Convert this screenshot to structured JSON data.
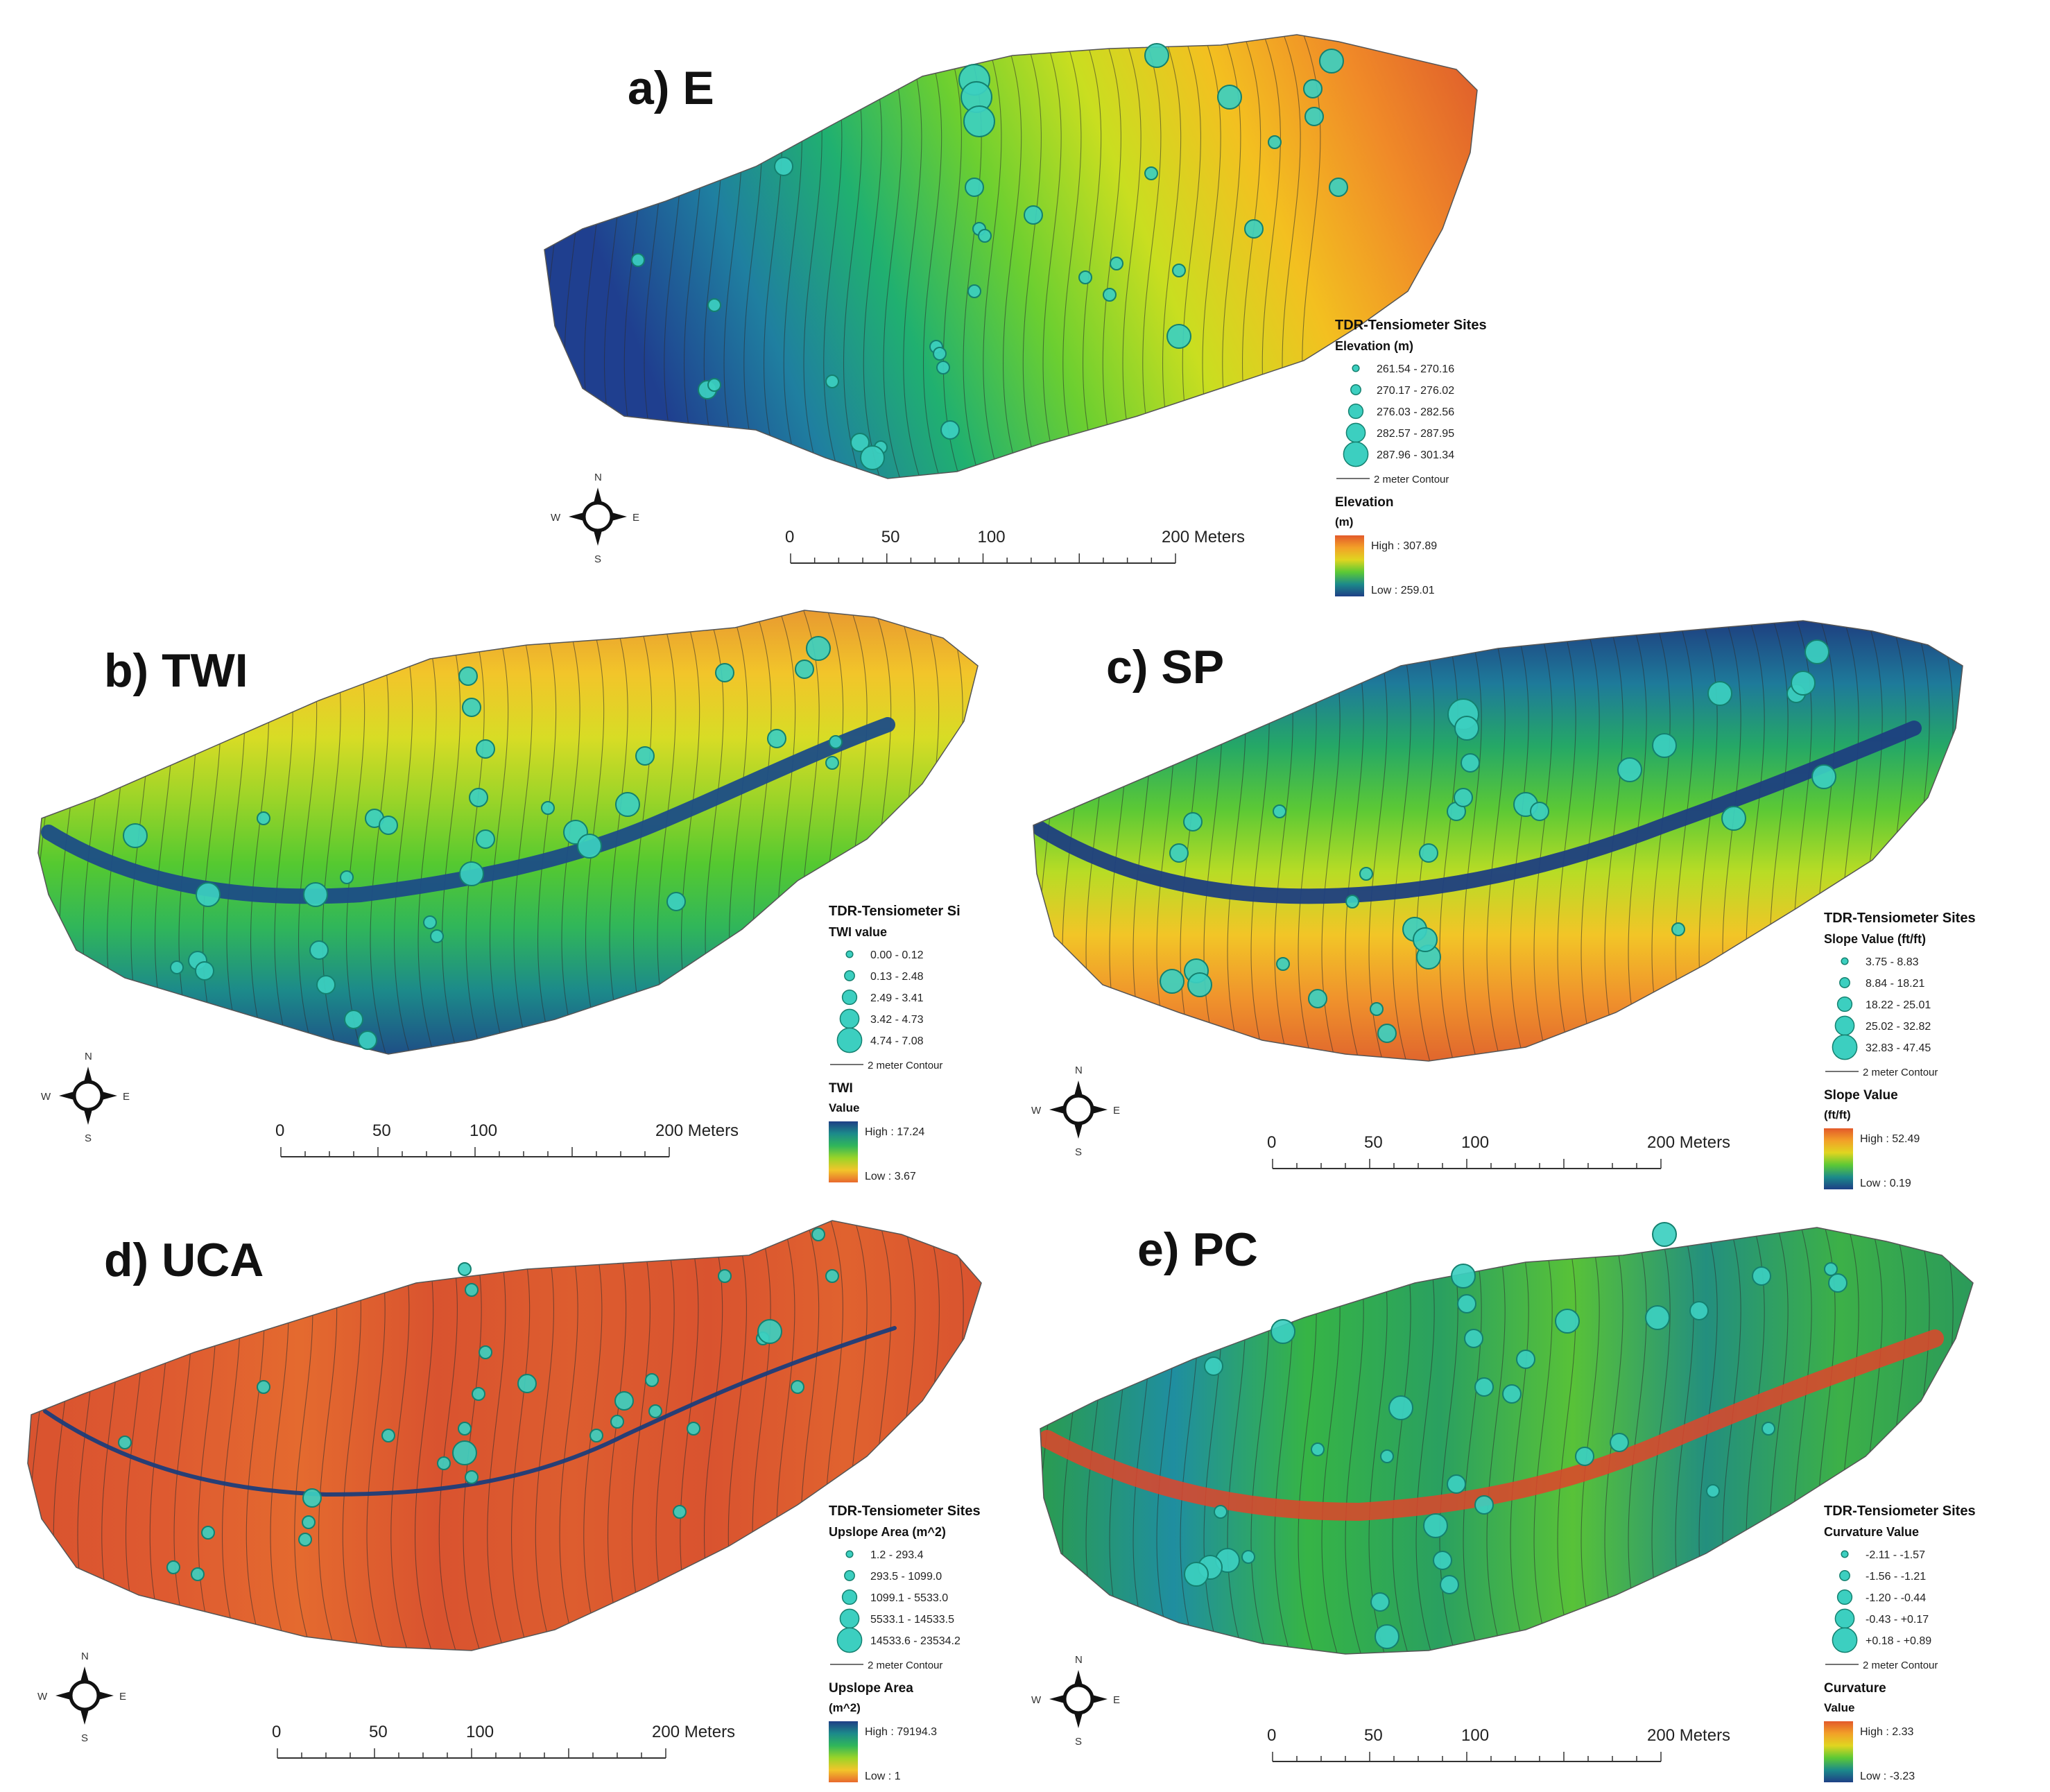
{
  "compass": {
    "n": "N",
    "s": "S",
    "e": "E",
    "w": "W"
  },
  "scale": {
    "labels": [
      "0",
      "50",
      "100",
      "200 Meters"
    ]
  },
  "panels": [
    {
      "id": "a",
      "title": "a) E",
      "legend": {
        "sites_title": "TDR-Tensiometer Sites",
        "sites_var": "Elevation (m)",
        "classes": [
          "261.54 - 270.16",
          "270.17 - 276.02",
          "276.03 - 282.56",
          "282.57 - 287.95",
          "287.96 - 301.34"
        ],
        "contour": "2 meter Contour",
        "raster_title": "Elevation",
        "raster_unit": "(m)",
        "high": "High : 307.89",
        "low": "Low : 259.01"
      },
      "colors": [
        "#1f3f8f",
        "#1f7fa0",
        "#20b070",
        "#6ccf30",
        "#c9de20",
        "#f3c020",
        "#f08a28",
        "#de5a2c"
      ]
    },
    {
      "id": "b",
      "title": "b) TWI",
      "legend": {
        "sites_title": "TDR-Tensiometer Si",
        "sites_var": "TWI value",
        "classes": [
          "0.00 - 0.12",
          "0.13 - 2.48",
          "2.49 - 3.41",
          "3.42 - 4.73",
          "4.74 - 7.08"
        ],
        "contour": "2 meter Contour",
        "raster_title": "TWI",
        "raster_unit": "Value",
        "high": "High : 17.24",
        "low": "Low : 3.67"
      },
      "colors": [
        "#e89a30",
        "#f2c52a",
        "#d8dc25",
        "#9ad428",
        "#55c930",
        "#30b65a",
        "#1c8a8a",
        "#1e4f86"
      ]
    },
    {
      "id": "c",
      "title": "c) SP",
      "legend": {
        "sites_title": "TDR-Tensiometer Sites",
        "sites_var": "Slope Value (ft/ft)",
        "classes": [
          "3.75 - 8.83",
          "8.84 - 18.21",
          "18.22 - 25.01",
          "25.02 - 32.82",
          "32.83 - 47.45"
        ],
        "contour": "2 meter Contour",
        "raster_title": "Slope Value",
        "raster_unit": "(ft/ft)",
        "high": "High : 52.49",
        "low": "Low : 0.19"
      },
      "colors": [
        "#1e3f80",
        "#1e7a9a",
        "#25a866",
        "#5cc935",
        "#b8dc25",
        "#f2c527",
        "#f0932c",
        "#e0662d"
      ]
    },
    {
      "id": "d",
      "title": "d) UCA",
      "legend": {
        "sites_title": "TDR-Tensiometer Sites",
        "sites_var": "Upslope Area (m^2)",
        "classes": [
          "1.2 - 293.4",
          "293.5 - 1099.0",
          "1099.1 - 5533.0",
          "5533.1 - 14533.5",
          "14533.6 - 23534.2"
        ],
        "contour": "2 meter Contour",
        "raster_title": "Upslope Area",
        "raster_unit": "(m^2)",
        "high": "High : 79194.3",
        "low": "Low : 1"
      },
      "colors": [
        "#d9532f",
        "#de5a30",
        "#e46a2f",
        "#d9532f",
        "#dd5d2f",
        "#d9532f",
        "#e0622f",
        "#d9532f"
      ]
    },
    {
      "id": "e",
      "title": "e) PC",
      "legend": {
        "sites_title": "TDR-Tensiometer Sites",
        "sites_var": "Curvature Value",
        "classes": [
          "-2.11 - -1.57",
          "-1.56 - -1.21",
          "-1.20 - -0.44",
          "-0.43 - +0.17",
          "+0.18 - +0.89"
        ],
        "contour": "2 meter Contour",
        "raster_title": "Curvature",
        "raster_unit": "Value",
        "high": "High : 2.33",
        "low": "Low : -3.23"
      },
      "colors": [
        "#2a9c50",
        "#1f8ea0",
        "#36b446",
        "#2aa060",
        "#58c238",
        "#238f7e",
        "#3cb048",
        "#2b9a5a"
      ]
    }
  ]
}
